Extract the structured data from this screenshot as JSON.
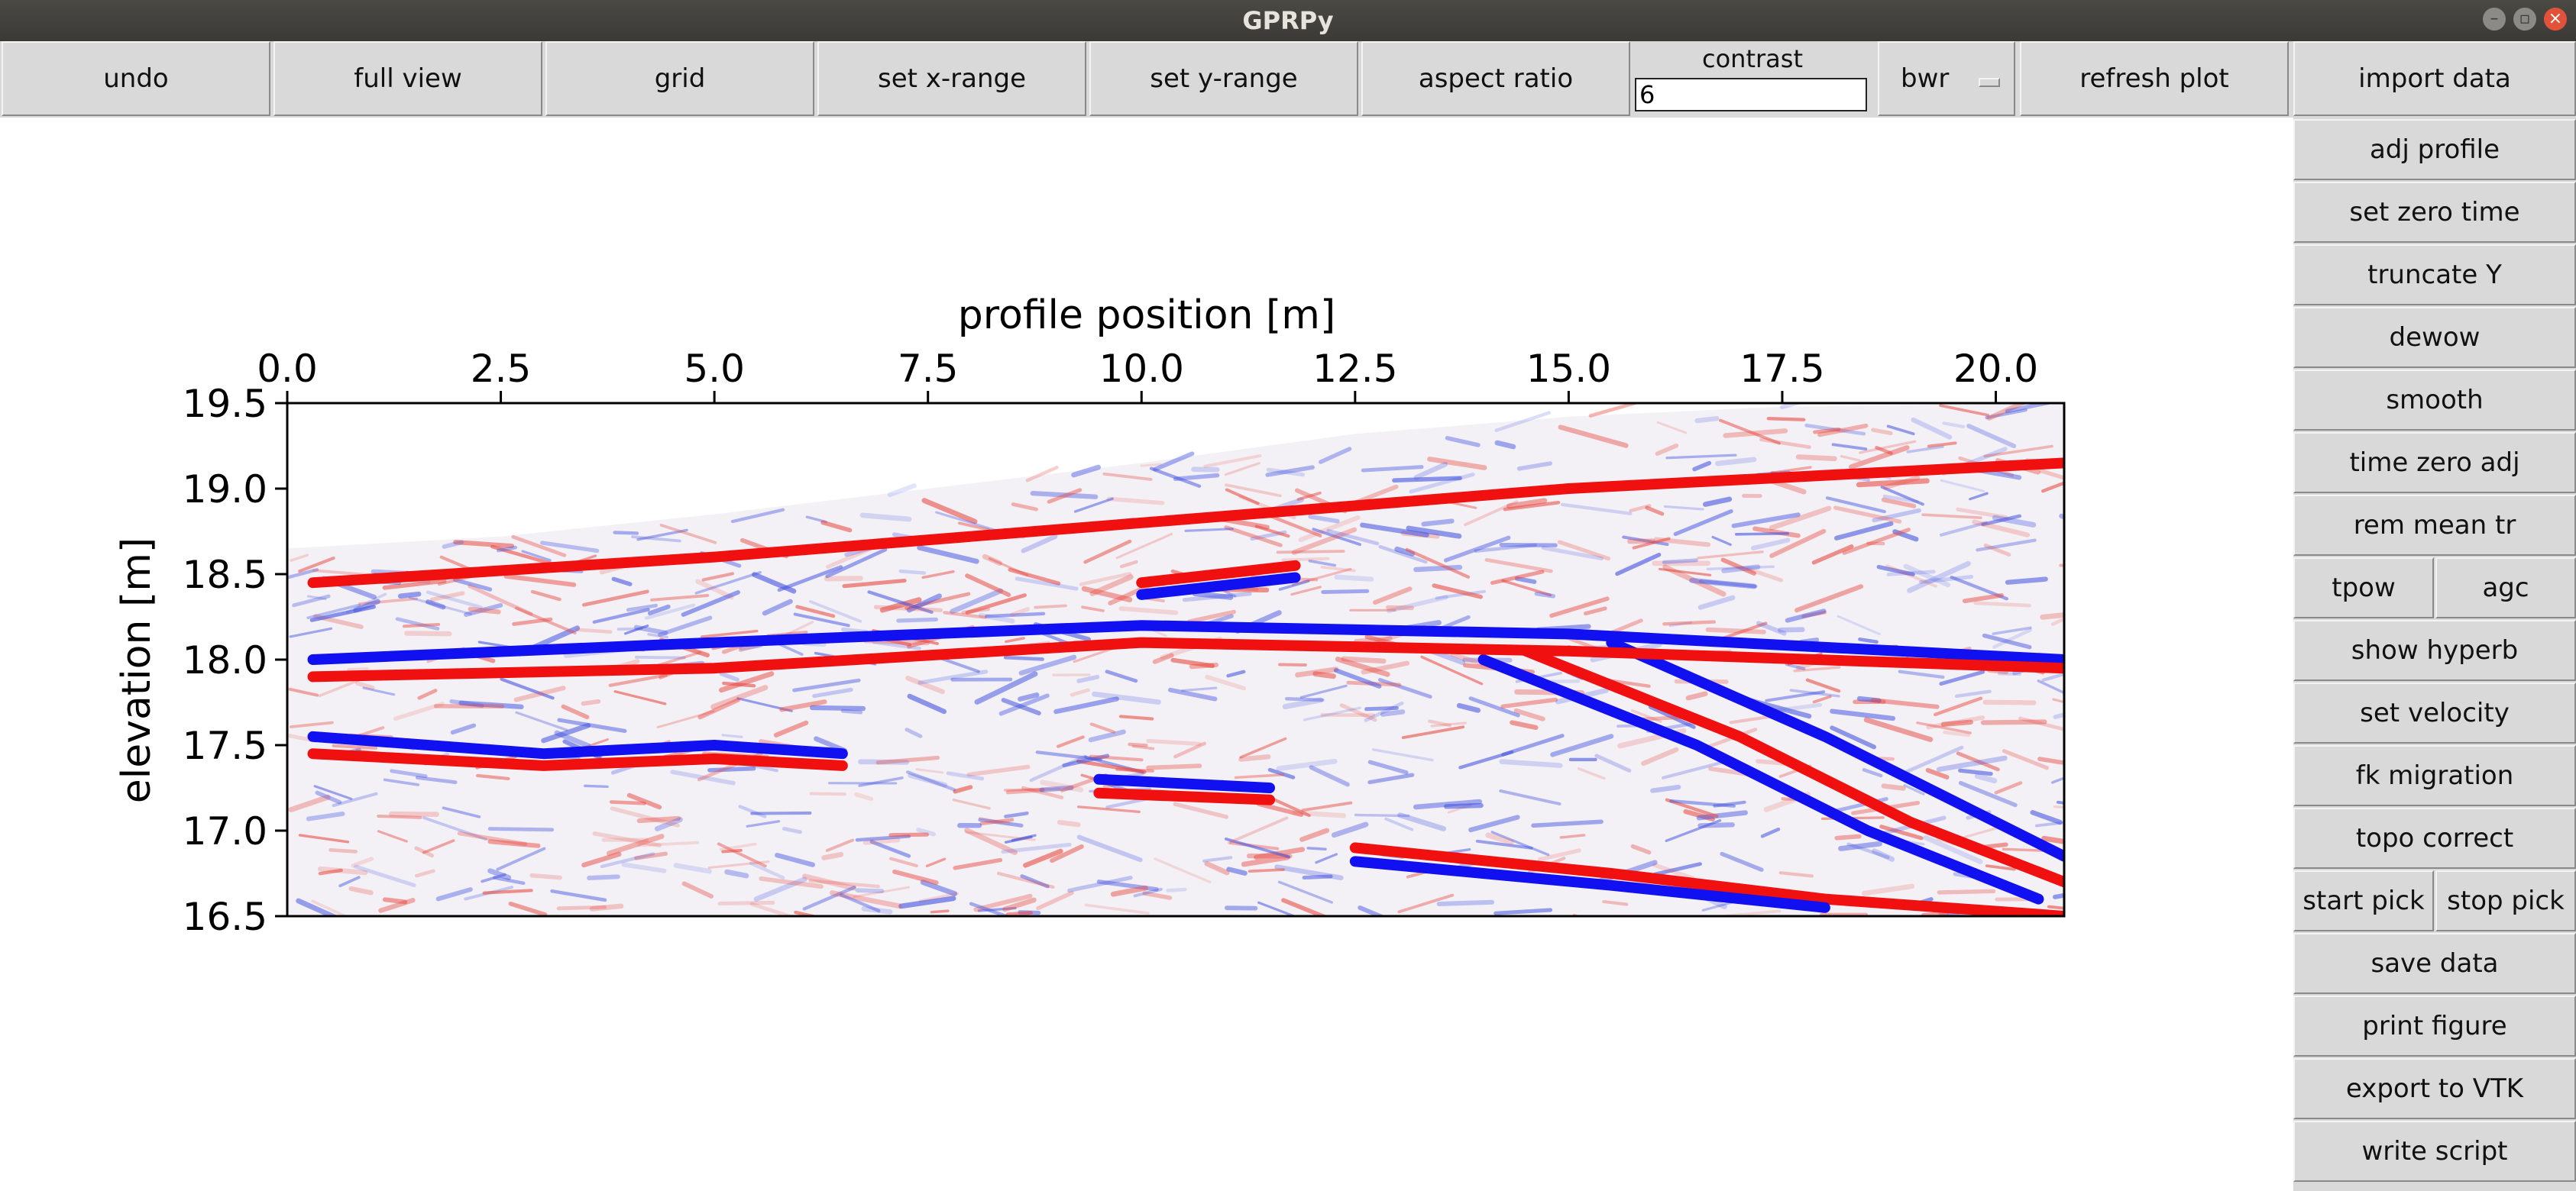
{
  "window": {
    "title": "GPRPy"
  },
  "toolbar": {
    "undo": "undo",
    "full_view": "full view",
    "grid": "grid",
    "set_x_range": "set x-range",
    "set_y_range": "set y-range",
    "aspect_ratio": "aspect ratio",
    "contrast_label": "contrast",
    "contrast_value": "6",
    "colormap": "bwr",
    "refresh_plot": "refresh plot",
    "import_data": "import data"
  },
  "sidebar": {
    "adj_profile": "adj profile",
    "set_zero_time": "set zero time",
    "truncate_y": "truncate Y",
    "dewow": "dewow",
    "smooth": "smooth",
    "time_zero_adj": "time zero adj",
    "rem_mean_tr": "rem mean tr",
    "tpow": "tpow",
    "agc": "agc",
    "show_hyperb": "show hyperb",
    "set_velocity": "set velocity",
    "fk_migration": "fk migration",
    "topo_correct": "topo correct",
    "start_pick": "start pick",
    "stop_pick": "stop pick",
    "save_data": "save data",
    "print_figure": "print figure",
    "export_to_vtk": "export to VTK",
    "write_script": "write script"
  },
  "chart_data": {
    "type": "heatmap",
    "title": "",
    "xlabel": "profile position [m]",
    "ylabel": "elevation [m]",
    "xlim": [
      0.0,
      20.8
    ],
    "ylim": [
      16.5,
      19.5
    ],
    "x_axis_position": "top",
    "xticks": [
      "0.0",
      "2.5",
      "5.0",
      "7.5",
      "10.0",
      "12.5",
      "15.0",
      "17.5",
      "20.0"
    ],
    "yticks": [
      "19.5",
      "19.0",
      "18.5",
      "18.0",
      "17.5",
      "17.0",
      "16.5"
    ],
    "colormap": "bwr",
    "grid": false,
    "surface_topography": [
      [
        0.0,
        18.65
      ],
      [
        2.5,
        18.72
      ],
      [
        5.0,
        18.85
      ],
      [
        7.5,
        19.0
      ],
      [
        10.0,
        19.15
      ],
      [
        12.5,
        19.32
      ],
      [
        15.0,
        19.42
      ],
      [
        17.5,
        19.48
      ],
      [
        20.8,
        19.5
      ]
    ],
    "reflectors": [
      {
        "polarity": "blue",
        "points": [
          [
            0.3,
            17.55
          ],
          [
            3.0,
            17.45
          ],
          [
            5.0,
            17.5
          ],
          [
            6.5,
            17.45
          ]
        ]
      },
      {
        "polarity": "red",
        "points": [
          [
            0.3,
            17.45
          ],
          [
            3.0,
            17.38
          ],
          [
            5.0,
            17.42
          ],
          [
            6.5,
            17.38
          ]
        ]
      },
      {
        "polarity": "red",
        "points": [
          [
            10.0,
            18.45
          ],
          [
            11.8,
            18.55
          ]
        ]
      },
      {
        "polarity": "blue",
        "points": [
          [
            10.0,
            18.38
          ],
          [
            11.8,
            18.48
          ]
        ]
      },
      {
        "polarity": "blue",
        "points": [
          [
            9.5,
            17.3
          ],
          [
            11.5,
            17.25
          ]
        ]
      },
      {
        "polarity": "red",
        "points": [
          [
            9.5,
            17.22
          ],
          [
            11.5,
            17.18
          ]
        ]
      },
      {
        "polarity": "red",
        "points": [
          [
            12.5,
            16.9
          ],
          [
            15.5,
            16.75
          ],
          [
            18.0,
            16.6
          ],
          [
            20.8,
            16.5
          ]
        ]
      },
      {
        "polarity": "blue",
        "points": [
          [
            12.5,
            16.82
          ],
          [
            15.5,
            16.68
          ],
          [
            18.0,
            16.55
          ]
        ]
      },
      {
        "polarity": "blue",
        "points": [
          [
            14.0,
            18.0
          ],
          [
            16.5,
            17.5
          ],
          [
            18.5,
            17.0
          ],
          [
            20.5,
            16.6
          ]
        ]
      },
      {
        "polarity": "red",
        "points": [
          [
            14.5,
            18.05
          ],
          [
            17.0,
            17.55
          ],
          [
            19.0,
            17.05
          ],
          [
            20.8,
            16.7
          ]
        ]
      },
      {
        "polarity": "blue",
        "points": [
          [
            15.5,
            18.1
          ],
          [
            18.0,
            17.55
          ],
          [
            20.8,
            16.85
          ]
        ]
      },
      {
        "polarity": "red",
        "points": [
          [
            0.3,
            18.45
          ],
          [
            5.0,
            18.6
          ],
          [
            10.0,
            18.8
          ],
          [
            15.0,
            19.0
          ],
          [
            20.8,
            19.15
          ]
        ]
      },
      {
        "polarity": "blue",
        "points": [
          [
            0.3,
            18.0
          ],
          [
            5.0,
            18.1
          ],
          [
            10.0,
            18.2
          ],
          [
            15.0,
            18.15
          ],
          [
            20.8,
            18.0
          ]
        ]
      },
      {
        "polarity": "red",
        "points": [
          [
            0.3,
            17.9
          ],
          [
            5.0,
            17.95
          ],
          [
            10.0,
            18.1
          ],
          [
            15.0,
            18.05
          ],
          [
            20.8,
            17.95
          ]
        ]
      }
    ]
  }
}
